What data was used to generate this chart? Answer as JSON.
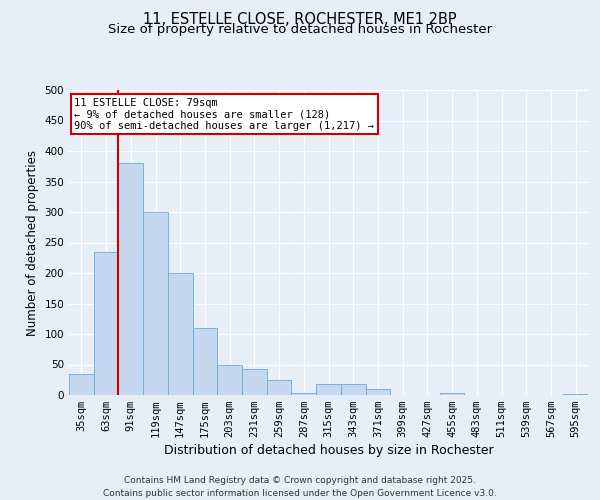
{
  "title_line1": "11, ESTELLE CLOSE, ROCHESTER, ME1 2BP",
  "title_line2": "Size of property relative to detached houses in Rochester",
  "xlabel": "Distribution of detached houses by size in Rochester",
  "ylabel": "Number of detached properties",
  "categories": [
    "35sqm",
    "63sqm",
    "91sqm",
    "119sqm",
    "147sqm",
    "175sqm",
    "203sqm",
    "231sqm",
    "259sqm",
    "287sqm",
    "315sqm",
    "343sqm",
    "371sqm",
    "399sqm",
    "427sqm",
    "455sqm",
    "483sqm",
    "511sqm",
    "539sqm",
    "567sqm",
    "595sqm"
  ],
  "values": [
    35,
    235,
    380,
    300,
    200,
    110,
    50,
    43,
    25,
    3,
    18,
    18,
    10,
    0,
    0,
    3,
    0,
    0,
    0,
    0,
    2
  ],
  "bar_color": "#c5d8f0",
  "bar_edge_color": "#6aacd4",
  "marker_label_line1": "11 ESTELLE CLOSE: 79sqm",
  "marker_label_line2": "← 9% of detached houses are smaller (128)",
  "marker_label_line3": "90% of semi-detached houses are larger (1,217) →",
  "annotation_box_color": "#cc0000",
  "red_line_x": 1.5,
  "ylim": [
    0,
    500
  ],
  "yticks": [
    0,
    50,
    100,
    150,
    200,
    250,
    300,
    350,
    400,
    450,
    500
  ],
  "footer_line1": "Contains HM Land Registry data © Crown copyright and database right 2025.",
  "footer_line2": "Contains public sector information licensed under the Open Government Licence v3.0.",
  "bg_color": "#e8eef8",
  "grid_color": "#ffffff",
  "title_fontsize": 10.5,
  "subtitle_fontsize": 9.5,
  "axis_label_fontsize": 8.5,
  "tick_fontsize": 7.5,
  "annot_fontsize": 7.5,
  "footer_fontsize": 6.5
}
